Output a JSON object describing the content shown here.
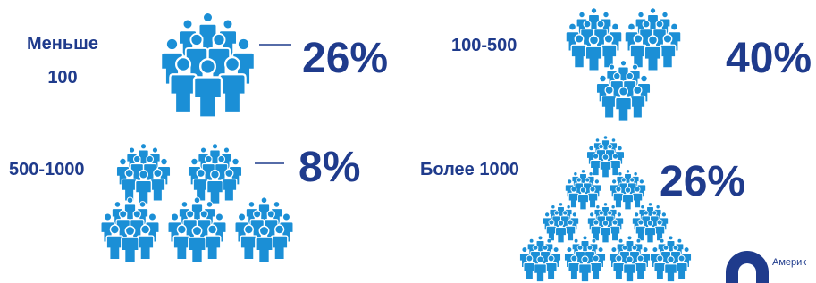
{
  "items": [
    {
      "label": "Меньше 100",
      "value": "26%"
    },
    {
      "label": "100-500",
      "value": "40%"
    },
    {
      "label": "500-1000",
      "value": "8%"
    },
    {
      "label": "Более 1000",
      "value": "26%"
    }
  ],
  "logo": {
    "text": "Америк"
  }
}
